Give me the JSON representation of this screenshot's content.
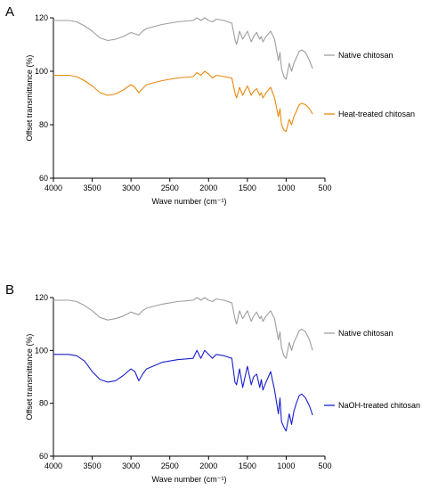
{
  "chart_data": [
    {
      "panel_label": "A",
      "type": "line",
      "xlabel": "Wave number (cm⁻¹)",
      "ylabel": "Offset transmittance (%)",
      "xlim": [
        4000,
        500
      ],
      "ylim": [
        60,
        120
      ],
      "x_ticks": [
        4000,
        3500,
        3000,
        2500,
        2000,
        1500,
        1000,
        500
      ],
      "y_ticks": [
        60,
        80,
        100,
        120
      ],
      "legend_position": "right",
      "series": [
        {
          "name": "Native chitosan",
          "color": "#9e9e9e",
          "x": [
            4000,
            3800,
            3700,
            3600,
            3500,
            3400,
            3300,
            3200,
            3100,
            3000,
            2950,
            2900,
            2850,
            2800,
            2600,
            2400,
            2200,
            2150,
            2100,
            2050,
            2000,
            1950,
            1900,
            1800,
            1700,
            1660,
            1640,
            1600,
            1560,
            1500,
            1450,
            1420,
            1380,
            1340,
            1320,
            1300,
            1260,
            1200,
            1150,
            1100,
            1080,
            1060,
            1030,
            1000,
            960,
            930,
            900,
            870,
            830,
            800,
            750,
            700,
            660
          ],
          "y": [
            119,
            119,
            118.5,
            117,
            115,
            112.5,
            111.5,
            112,
            113,
            114.5,
            114,
            113.5,
            115,
            116,
            117.5,
            118.5,
            119,
            120,
            119,
            120,
            119,
            118.5,
            119.5,
            119,
            118,
            112,
            110,
            115,
            112,
            115,
            111,
            113,
            114.5,
            112,
            113,
            111,
            113,
            115,
            112,
            104,
            107,
            101,
            98,
            97,
            103,
            100,
            103,
            105,
            107.5,
            108,
            107,
            104,
            101
          ]
        },
        {
          "name": "Heat-treated chitosan",
          "color": "#e8890f",
          "x": [
            4000,
            3800,
            3700,
            3600,
            3500,
            3400,
            3300,
            3200,
            3100,
            3000,
            2950,
            2900,
            2850,
            2800,
            2600,
            2400,
            2200,
            2150,
            2100,
            2050,
            2000,
            1950,
            1900,
            1800,
            1700,
            1660,
            1640,
            1600,
            1560,
            1500,
            1450,
            1420,
            1380,
            1340,
            1320,
            1300,
            1260,
            1200,
            1150,
            1100,
            1080,
            1060,
            1030,
            1000,
            960,
            930,
            900,
            870,
            830,
            800,
            750,
            700,
            660
          ],
          "y": [
            98.5,
            98.5,
            98,
            96.5,
            94.5,
            92,
            91,
            91.5,
            93,
            95,
            94,
            92,
            93.5,
            95,
            96.5,
            97.5,
            98,
            99.5,
            98.5,
            100,
            99,
            97.5,
            98.5,
            98,
            97.5,
            92,
            90,
            94,
            91,
            94.5,
            91,
            92.5,
            93.5,
            91,
            92,
            90,
            92,
            94,
            90,
            83,
            86,
            80,
            78,
            77.5,
            82,
            80,
            83,
            85,
            87.5,
            88,
            87.5,
            86,
            84
          ]
        }
      ]
    },
    {
      "panel_label": "B",
      "type": "line",
      "xlabel": "Wave number (cm⁻¹)",
      "ylabel": "Offset transmittance (%)",
      "xlim": [
        4000,
        500
      ],
      "ylim": [
        60,
        120
      ],
      "x_ticks": [
        4000,
        3500,
        3000,
        2500,
        2000,
        1500,
        1000,
        500
      ],
      "y_ticks": [
        60,
        80,
        100,
        120
      ],
      "legend_position": "right",
      "series": [
        {
          "name": "Native chitosan",
          "color": "#9e9e9e",
          "x": [
            4000,
            3800,
            3700,
            3600,
            3500,
            3400,
            3300,
            3200,
            3100,
            3000,
            2950,
            2900,
            2850,
            2800,
            2600,
            2400,
            2200,
            2150,
            2100,
            2050,
            2000,
            1950,
            1900,
            1800,
            1700,
            1660,
            1640,
            1600,
            1560,
            1500,
            1450,
            1420,
            1380,
            1340,
            1320,
            1300,
            1260,
            1200,
            1150,
            1100,
            1080,
            1060,
            1030,
            1000,
            960,
            930,
            900,
            870,
            830,
            800,
            750,
            700,
            660
          ],
          "y": [
            119,
            119,
            118.5,
            117,
            115,
            112.5,
            111.5,
            112,
            113,
            114.5,
            114,
            113.5,
            115,
            116,
            117.5,
            118.5,
            119,
            120,
            119,
            120,
            119,
            118.5,
            119.5,
            119,
            118,
            112,
            110,
            115,
            112,
            115,
            111,
            113,
            114.5,
            112,
            113,
            111,
            113,
            115,
            112,
            104,
            107,
            101,
            98,
            97,
            103,
            100,
            103,
            105,
            107.5,
            108,
            107,
            104,
            100
          ]
        },
        {
          "name": "NaOH-treated chitosan",
          "color": "#1a1fcc",
          "x": [
            4000,
            3800,
            3700,
            3600,
            3500,
            3400,
            3300,
            3200,
            3100,
            3000,
            2950,
            2900,
            2850,
            2800,
            2600,
            2400,
            2200,
            2150,
            2100,
            2050,
            2000,
            1950,
            1900,
            1800,
            1700,
            1660,
            1640,
            1600,
            1560,
            1500,
            1450,
            1420,
            1380,
            1340,
            1320,
            1300,
            1260,
            1200,
            1150,
            1100,
            1080,
            1060,
            1030,
            1000,
            960,
            930,
            900,
            870,
            830,
            800,
            750,
            700,
            660
          ],
          "y": [
            98.5,
            98.5,
            98,
            96,
            92,
            89,
            88,
            88.5,
            90.5,
            93,
            92,
            88.5,
            91,
            93,
            95.5,
            96.5,
            97,
            100,
            97,
            100,
            98.5,
            97,
            98.5,
            98,
            97,
            88,
            87,
            93,
            86,
            94,
            87,
            90,
            91,
            86,
            89,
            85,
            88,
            92,
            85,
            76,
            82,
            73,
            71,
            69.5,
            76,
            72,
            77,
            80,
            83,
            83.5,
            82,
            79,
            75.5
          ]
        }
      ]
    }
  ]
}
